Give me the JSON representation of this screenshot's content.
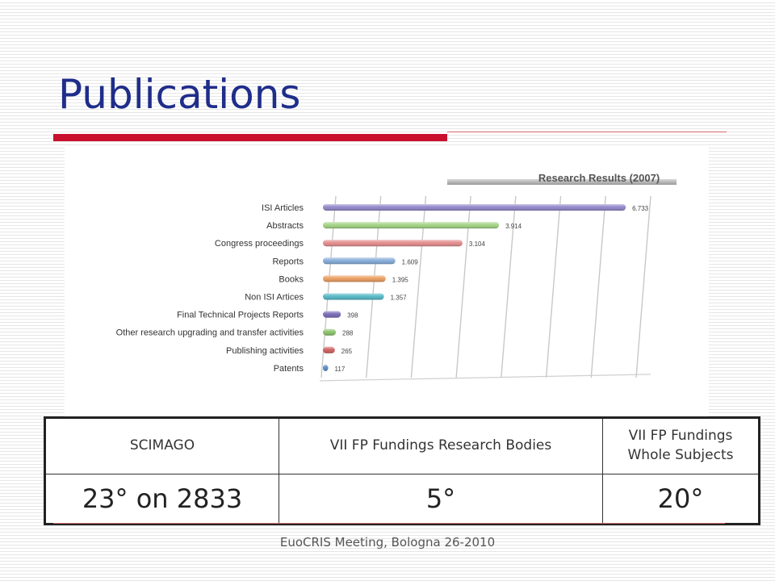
{
  "slide": {
    "title": "Publications",
    "footer": "EuoCRIS Meeting, Bologna 26-2010"
  },
  "chart_data": {
    "type": "bar",
    "orientation": "horizontal",
    "title": "Research Results (2007)",
    "categories": [
      "ISI Articles",
      "Abstracts",
      "Congress proceedings",
      "Reports",
      "Books",
      "Non ISI Artices",
      "Final Technical Projects Reports",
      "Other research upgrading and transfer activities",
      "Publishing activities",
      "Patents"
    ],
    "values": [
      6733,
      3914,
      3104,
      1609,
      1395,
      1357,
      398,
      288,
      265,
      117
    ],
    "value_labels": [
      "6.733",
      "3.914",
      "3.104",
      "1.609",
      "1.395",
      "1.357",
      "398",
      "288",
      "265",
      "117"
    ],
    "colors": [
      "#8e82c6",
      "#9fd17e",
      "#e28888",
      "#7fa8d6",
      "#e99a58",
      "#4fb6c4",
      "#7566b3",
      "#86c065",
      "#cc5a5a",
      "#4f86c4"
    ],
    "xlim": [
      0,
      7000
    ],
    "grid": true,
    "legend": "none"
  },
  "table": {
    "headers": [
      "SCIMAGO",
      "VII FP Fundings Research Bodies",
      "VII FP Fundings Whole Subjects"
    ],
    "values": [
      "23° on 2833",
      "5°",
      "20°"
    ]
  }
}
